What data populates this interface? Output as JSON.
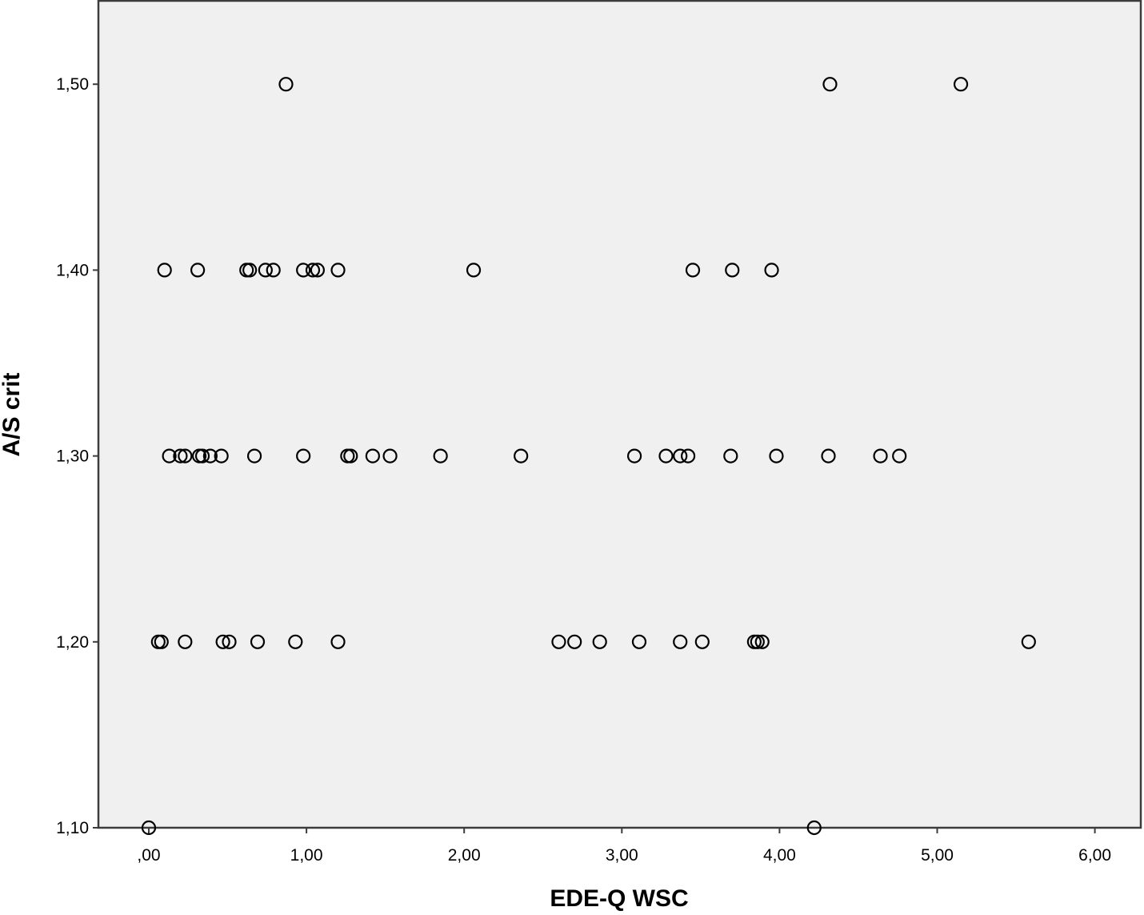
{
  "chart_data": {
    "type": "scatter",
    "xlabel": "EDE-Q WSC",
    "ylabel": "A/S crit",
    "xlim": [
      -0.32,
      6.22
    ],
    "ylim": [
      1.1,
      1.545
    ],
    "x_ticks": [
      0,
      1,
      2,
      3,
      4,
      5,
      6
    ],
    "x_tick_labels": [
      ",00",
      "1,00",
      "2,00",
      "3,00",
      "4,00",
      "5,00",
      "6,00"
    ],
    "y_ticks": [
      1.1,
      1.2,
      1.3,
      1.4,
      1.5
    ],
    "y_tick_labels": [
      "1,10",
      "1,20",
      "1,30",
      "1,40",
      "1,50"
    ],
    "grid": false,
    "background": "#f0f0f0",
    "marker": "open-circle",
    "marker_color": "#000000",
    "points": [
      {
        "x": 0.87,
        "y": 1.5
      },
      {
        "x": 4.32,
        "y": 1.5
      },
      {
        "x": 5.15,
        "y": 1.5
      },
      {
        "x": 0.1,
        "y": 1.4
      },
      {
        "x": 0.31,
        "y": 1.4
      },
      {
        "x": 0.62,
        "y": 1.4
      },
      {
        "x": 0.64,
        "y": 1.4
      },
      {
        "x": 0.74,
        "y": 1.4
      },
      {
        "x": 0.79,
        "y": 1.4
      },
      {
        "x": 0.98,
        "y": 1.4
      },
      {
        "x": 1.04,
        "y": 1.4
      },
      {
        "x": 1.07,
        "y": 1.4
      },
      {
        "x": 1.2,
        "y": 1.4
      },
      {
        "x": 2.06,
        "y": 1.4
      },
      {
        "x": 3.45,
        "y": 1.4
      },
      {
        "x": 3.7,
        "y": 1.4
      },
      {
        "x": 3.95,
        "y": 1.4
      },
      {
        "x": 0.13,
        "y": 1.3
      },
      {
        "x": 0.2,
        "y": 1.3
      },
      {
        "x": 0.23,
        "y": 1.3
      },
      {
        "x": 0.32,
        "y": 1.3
      },
      {
        "x": 0.34,
        "y": 1.3
      },
      {
        "x": 0.39,
        "y": 1.3
      },
      {
        "x": 0.46,
        "y": 1.3
      },
      {
        "x": 0.67,
        "y": 1.3
      },
      {
        "x": 0.98,
        "y": 1.3
      },
      {
        "x": 1.26,
        "y": 1.3
      },
      {
        "x": 1.28,
        "y": 1.3
      },
      {
        "x": 1.42,
        "y": 1.3
      },
      {
        "x": 1.53,
        "y": 1.3
      },
      {
        "x": 1.85,
        "y": 1.3
      },
      {
        "x": 2.36,
        "y": 1.3
      },
      {
        "x": 3.08,
        "y": 1.3
      },
      {
        "x": 3.28,
        "y": 1.3
      },
      {
        "x": 3.37,
        "y": 1.3
      },
      {
        "x": 3.42,
        "y": 1.3
      },
      {
        "x": 3.69,
        "y": 1.3
      },
      {
        "x": 3.98,
        "y": 1.3
      },
      {
        "x": 4.31,
        "y": 1.3
      },
      {
        "x": 4.64,
        "y": 1.3
      },
      {
        "x": 4.76,
        "y": 1.3
      },
      {
        "x": 0.06,
        "y": 1.2
      },
      {
        "x": 0.08,
        "y": 1.2
      },
      {
        "x": 0.23,
        "y": 1.2
      },
      {
        "x": 0.47,
        "y": 1.2
      },
      {
        "x": 0.51,
        "y": 1.2
      },
      {
        "x": 0.69,
        "y": 1.2
      },
      {
        "x": 0.93,
        "y": 1.2
      },
      {
        "x": 1.2,
        "y": 1.2
      },
      {
        "x": 2.6,
        "y": 1.2
      },
      {
        "x": 2.7,
        "y": 1.2
      },
      {
        "x": 2.86,
        "y": 1.2
      },
      {
        "x": 3.11,
        "y": 1.2
      },
      {
        "x": 3.37,
        "y": 1.2
      },
      {
        "x": 3.51,
        "y": 1.2
      },
      {
        "x": 3.84,
        "y": 1.2
      },
      {
        "x": 3.86,
        "y": 1.2
      },
      {
        "x": 3.89,
        "y": 1.2
      },
      {
        "x": 5.58,
        "y": 1.2
      },
      {
        "x": 0.0,
        "y": 1.1
      },
      {
        "x": 4.22,
        "y": 1.1
      }
    ]
  }
}
